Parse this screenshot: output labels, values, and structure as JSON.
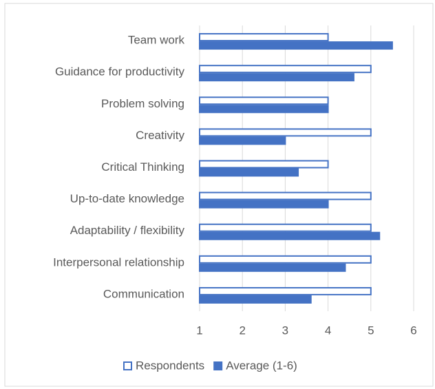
{
  "chart_data": {
    "type": "bar",
    "orientation": "horizontal",
    "categories": [
      "Team work",
      "Guidance for productivity",
      "Problem solving",
      "Creativity",
      "Critical Thinking",
      "Up-to-date knowledge",
      "Adaptability / flexibility",
      "Interpersonal relationship",
      "Communication"
    ],
    "series": [
      {
        "name": "Respondents",
        "color": "#4472c4",
        "fill": "none",
        "values": [
          4,
          5,
          4,
          5,
          4,
          5,
          5,
          5,
          5
        ]
      },
      {
        "name": "Average (1-6)",
        "color": "#4472c4",
        "fill": "solid",
        "values": [
          5.5,
          4.6,
          4,
          3,
          3.3,
          4,
          5.2,
          4.4,
          3.6
        ]
      }
    ],
    "xlim": [
      1,
      6
    ],
    "xticks": [
      1,
      2,
      3,
      4,
      5,
      6
    ],
    "grid": true,
    "legend": "bottom"
  }
}
